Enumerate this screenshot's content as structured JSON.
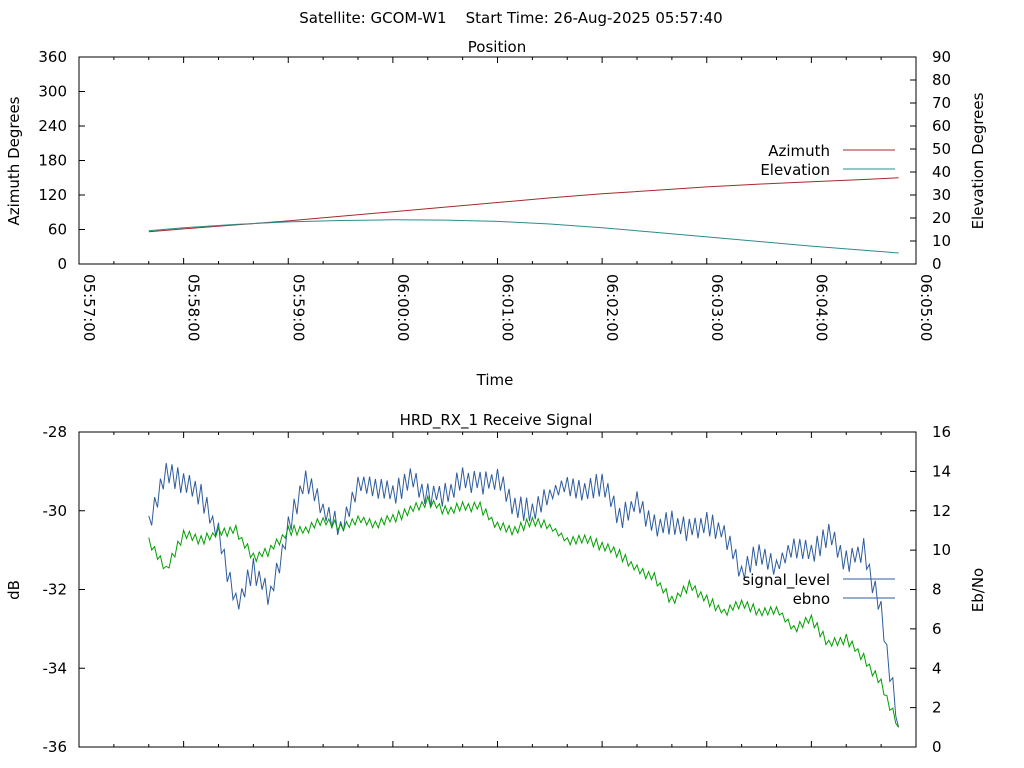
{
  "header": {
    "text": "Satellite: GCOM-W1    Start Time: 26-Aug-2025 05:57:40"
  },
  "colors": {
    "azimuth": "#a52a2a",
    "elevation": "#2e8b8b",
    "signal_level": "#2e5c9e",
    "ebno": "#00a000"
  },
  "chart_data": [
    {
      "type": "line",
      "title": "Position",
      "xlabel": "Time",
      "ylabel": "Azimuth Degrees",
      "y2label": "Elevation Degrees",
      "x_range": [
        "05:57:00",
        "06:05:00"
      ],
      "x_ticks": [
        "05:57:00",
        "05:58:00",
        "05:59:00",
        "06:00:00",
        "06:01:00",
        "06:02:00",
        "06:03:00",
        "06:04:00",
        "06:05:00"
      ],
      "ylim": [
        0,
        360
      ],
      "y_ticks": [
        "0",
        "60",
        "120",
        "180",
        "240",
        "300",
        "360"
      ],
      "y2lim": [
        0,
        90
      ],
      "y2_ticks": [
        "0",
        "10",
        "20",
        "30",
        "40",
        "50",
        "60",
        "70",
        "80",
        "90"
      ],
      "legend_position": "right",
      "series": [
        {
          "name": "Azimuth",
          "axis": "y",
          "x": [
            "05:57:40",
            "05:58:00",
            "05:58:30",
            "05:59:00",
            "05:59:30",
            "06:00:00",
            "06:00:30",
            "06:01:00",
            "06:01:30",
            "06:02:00",
            "06:02:30",
            "06:03:00",
            "06:03:30",
            "06:04:00",
            "06:04:30",
            "06:04:50"
          ],
          "values": [
            56,
            61,
            68,
            75,
            83,
            91,
            99,
            107,
            115,
            122,
            128,
            134,
            139,
            143,
            147,
            150
          ]
        },
        {
          "name": "Elevation",
          "axis": "y2",
          "x": [
            "05:57:40",
            "05:58:00",
            "05:58:30",
            "05:59:00",
            "05:59:30",
            "06:00:00",
            "06:00:30",
            "06:01:00",
            "06:01:30",
            "06:02:00",
            "06:02:30",
            "06:03:00",
            "06:03:30",
            "06:04:00",
            "06:04:30",
            "06:04:50"
          ],
          "values": [
            14.5,
            15.8,
            17.2,
            18.3,
            18.9,
            19.2,
            19.1,
            18.5,
            17.4,
            15.8,
            13.8,
            11.8,
            9.8,
            7.8,
            6.0,
            4.8
          ]
        }
      ]
    },
    {
      "type": "line",
      "title": "HRD_RX_1 Receive Signal",
      "xlabel": "",
      "ylabel": "dB",
      "y2label": "Eb/No",
      "x_range": [
        "05:57:00",
        "06:05:00"
      ],
      "ylim": [
        -36,
        -28
      ],
      "y_ticks": [
        "-28",
        "-30",
        "-32",
        "-34",
        "-36"
      ],
      "y2lim": [
        0,
        16
      ],
      "y2_ticks": [
        "0",
        "2",
        "4",
        "6",
        "8",
        "10",
        "12",
        "14",
        "16"
      ],
      "legend_position": "right",
      "series": [
        {
          "name": "signal_level",
          "axis": "y",
          "x": [
            "05:57:40",
            "05:57:50",
            "05:58:00",
            "05:58:10",
            "05:58:20",
            "05:58:30",
            "05:58:40",
            "05:58:50",
            "05:59:00",
            "05:59:10",
            "05:59:20",
            "05:59:30",
            "05:59:40",
            "05:59:50",
            "06:00:00",
            "06:00:10",
            "06:00:20",
            "06:00:30",
            "06:00:40",
            "06:00:50",
            "06:01:00",
            "06:01:10",
            "06:01:20",
            "06:01:30",
            "06:01:40",
            "06:01:50",
            "06:02:00",
            "06:02:10",
            "06:02:20",
            "06:02:30",
            "06:02:40",
            "06:02:50",
            "06:03:00",
            "06:03:10",
            "06:03:20",
            "06:03:30",
            "06:03:40",
            "06:03:50",
            "06:04:00",
            "06:04:10",
            "06:04:20",
            "06:04:30",
            "06:04:40",
            "06:04:50"
          ],
          "values": [
            -30.3,
            -29.0,
            -29.3,
            -29.6,
            -30.6,
            -32.4,
            -31.5,
            -32.2,
            -30.4,
            -29.2,
            -30.0,
            -30.4,
            -29.3,
            -29.4,
            -29.6,
            -29.2,
            -29.6,
            -29.6,
            -29.2,
            -29.3,
            -29.2,
            -29.9,
            -30.0,
            -29.6,
            -29.3,
            -29.5,
            -29.3,
            -30.2,
            -29.8,
            -30.4,
            -30.3,
            -30.5,
            -30.3,
            -30.6,
            -31.6,
            -31.0,
            -31.4,
            -30.9,
            -31.1,
            -30.6,
            -31.3,
            -31.0,
            -32.6,
            -35.5
          ]
        },
        {
          "name": "ebno",
          "axis": "y2",
          "x": [
            "05:57:40",
            "05:57:50",
            "05:58:00",
            "05:58:10",
            "05:58:20",
            "05:58:30",
            "05:58:40",
            "05:58:50",
            "05:59:00",
            "05:59:10",
            "05:59:20",
            "05:59:30",
            "05:59:40",
            "05:59:50",
            "06:00:00",
            "06:00:10",
            "06:00:20",
            "06:00:30",
            "06:00:40",
            "06:00:50",
            "06:01:00",
            "06:01:10",
            "06:01:20",
            "06:01:30",
            "06:01:40",
            "06:01:50",
            "06:02:00",
            "06:02:10",
            "06:02:20",
            "06:02:30",
            "06:02:40",
            "06:02:50",
            "06:03:00",
            "06:03:10",
            "06:03:20",
            "06:03:30",
            "06:03:40",
            "06:03:50",
            "06:04:00",
            "06:04:10",
            "06:04:20",
            "06:04:30",
            "06:04:40",
            "06:04:50"
          ],
          "values": [
            10.5,
            9.0,
            10.8,
            10.5,
            10.9,
            11.0,
            9.6,
            10.0,
            11.0,
            11.0,
            11.5,
            11.2,
            11.6,
            11.3,
            11.6,
            12.0,
            12.5,
            12.0,
            12.2,
            12.2,
            11.2,
            11.0,
            11.5,
            11.2,
            10.5,
            10.6,
            10.2,
            9.8,
            9.0,
            8.6,
            7.4,
            8.2,
            7.5,
            6.8,
            7.3,
            6.9,
            7.0,
            6.0,
            6.5,
            5.2,
            5.5,
            4.5,
            3.2,
            1.0
          ]
        }
      ]
    }
  ]
}
